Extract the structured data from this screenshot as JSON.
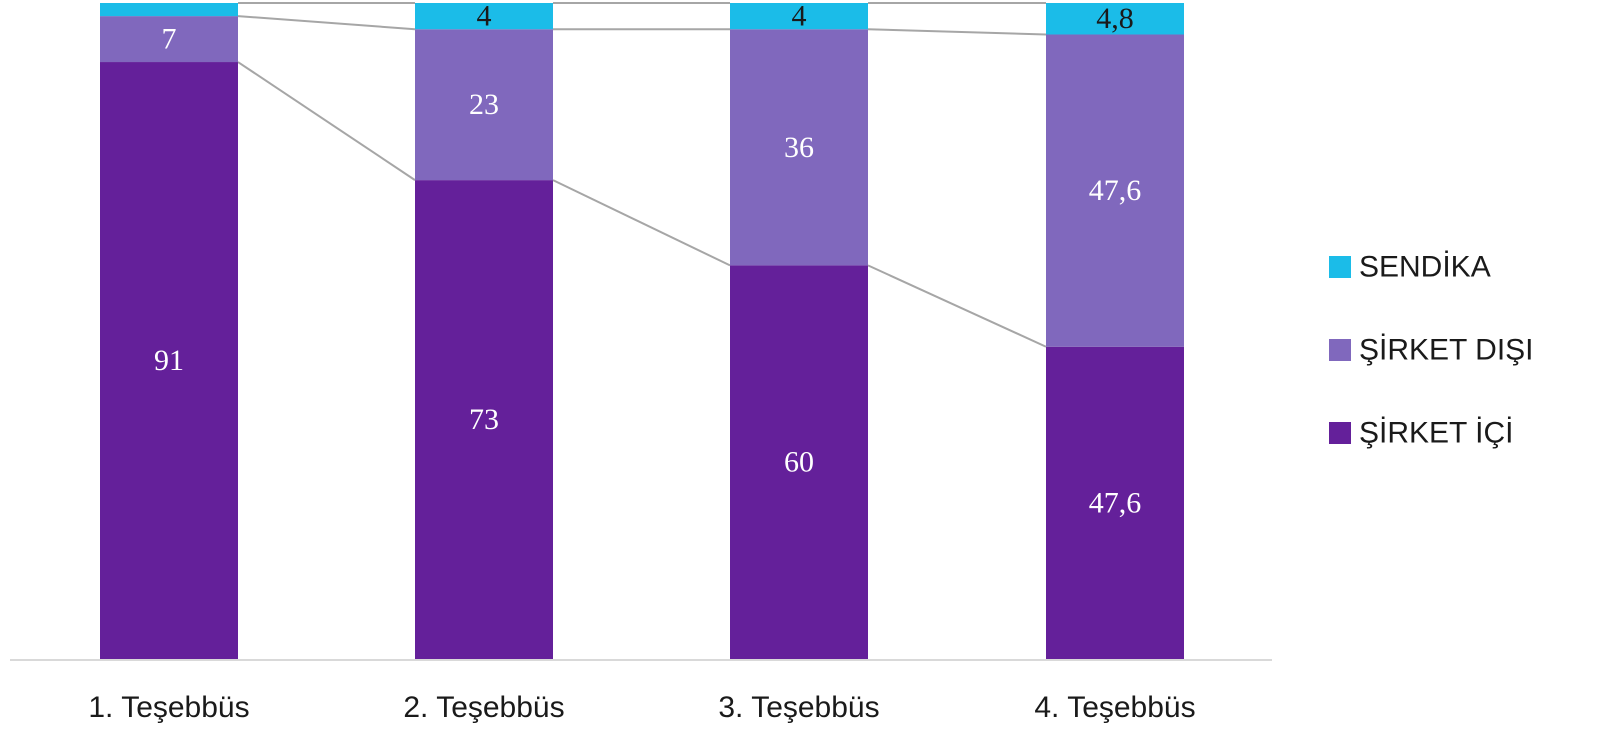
{
  "chart_data": {
    "type": "bar",
    "stacked": true,
    "percent_stacked": true,
    "categories": [
      "1. Teşebbüs",
      "2. Teşebbüs",
      "3. Teşebbüs",
      "4. Teşebbüs"
    ],
    "series": [
      {
        "name": "ŞİRKET İÇİ",
        "values": [
          91,
          73,
          60,
          47.6
        ],
        "labels": [
          "91",
          "73",
          "60",
          "47,6"
        ],
        "color": "#64209a",
        "label_color": "#ffffff"
      },
      {
        "name": "ŞİRKET DIŞI",
        "values": [
          7,
          23,
          36,
          47.6
        ],
        "labels": [
          "7",
          "23",
          "36",
          "47,6"
        ],
        "color": "#8068bd",
        "label_color": "#ffffff"
      },
      {
        "name": "SENDİKA",
        "values": [
          2,
          4,
          4,
          4.8
        ],
        "labels": [
          "",
          "4",
          "4",
          "4,8"
        ],
        "color": "#1bbce8",
        "label_color": "#1a1a1a"
      }
    ],
    "series_lines": true,
    "series_line_color": "#a6a6a6",
    "axis_color": "#d9d9d9",
    "legend_position": "right",
    "grid": false,
    "title": "",
    "xlabel": "",
    "ylabel": ""
  }
}
